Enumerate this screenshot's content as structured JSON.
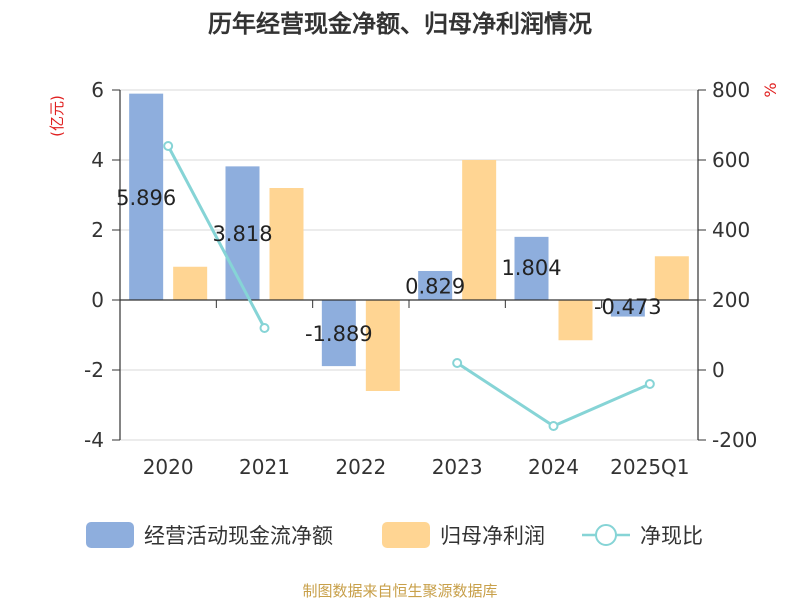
{
  "chart_data": {
    "type": "bar",
    "title": "历年经营现金净额、归母净利润情况",
    "categories": [
      "2020",
      "2021",
      "2022",
      "2023",
      "2024",
      "2025Q1"
    ],
    "series": [
      {
        "name": "经营活动现金流净额",
        "kind": "bar",
        "axis": "left",
        "color": "#8EAEDD",
        "values": [
          5.896,
          3.818,
          -1.889,
          0.829,
          1.804,
          -0.473
        ],
        "labels": [
          "5.896",
          "3.818",
          "-1.889",
          "0.829",
          "1.804",
          "-0.473"
        ]
      },
      {
        "name": "归母净利润",
        "kind": "bar",
        "axis": "left",
        "color": "#FFD593",
        "values": [
          0.95,
          3.2,
          -2.6,
          4.0,
          -1.15,
          1.25
        ]
      },
      {
        "name": "净现比",
        "kind": "line",
        "axis": "right",
        "color": "#86D4D6",
        "values": [
          640,
          120,
          null,
          20,
          -160,
          -40
        ]
      }
    ],
    "y_left": {
      "label": "(亿元)",
      "ylim": [
        -4,
        6
      ],
      "ticks": [
        "-4",
        "-2",
        "0",
        "2",
        "4",
        "6"
      ]
    },
    "y_right": {
      "label": "%",
      "ylim": [
        -200,
        800
      ],
      "ticks": [
        "-200",
        "0",
        "200",
        "400",
        "600",
        "800"
      ]
    },
    "grid": true,
    "legend": "bottom"
  },
  "source": "制图数据来自恒生聚源数据库",
  "colors": {
    "title": "#333333",
    "axis_label": "#E02020",
    "source": "#C8A04A",
    "grid": "#D9D9D9",
    "axis": "#333333",
    "text": "#333333"
  }
}
